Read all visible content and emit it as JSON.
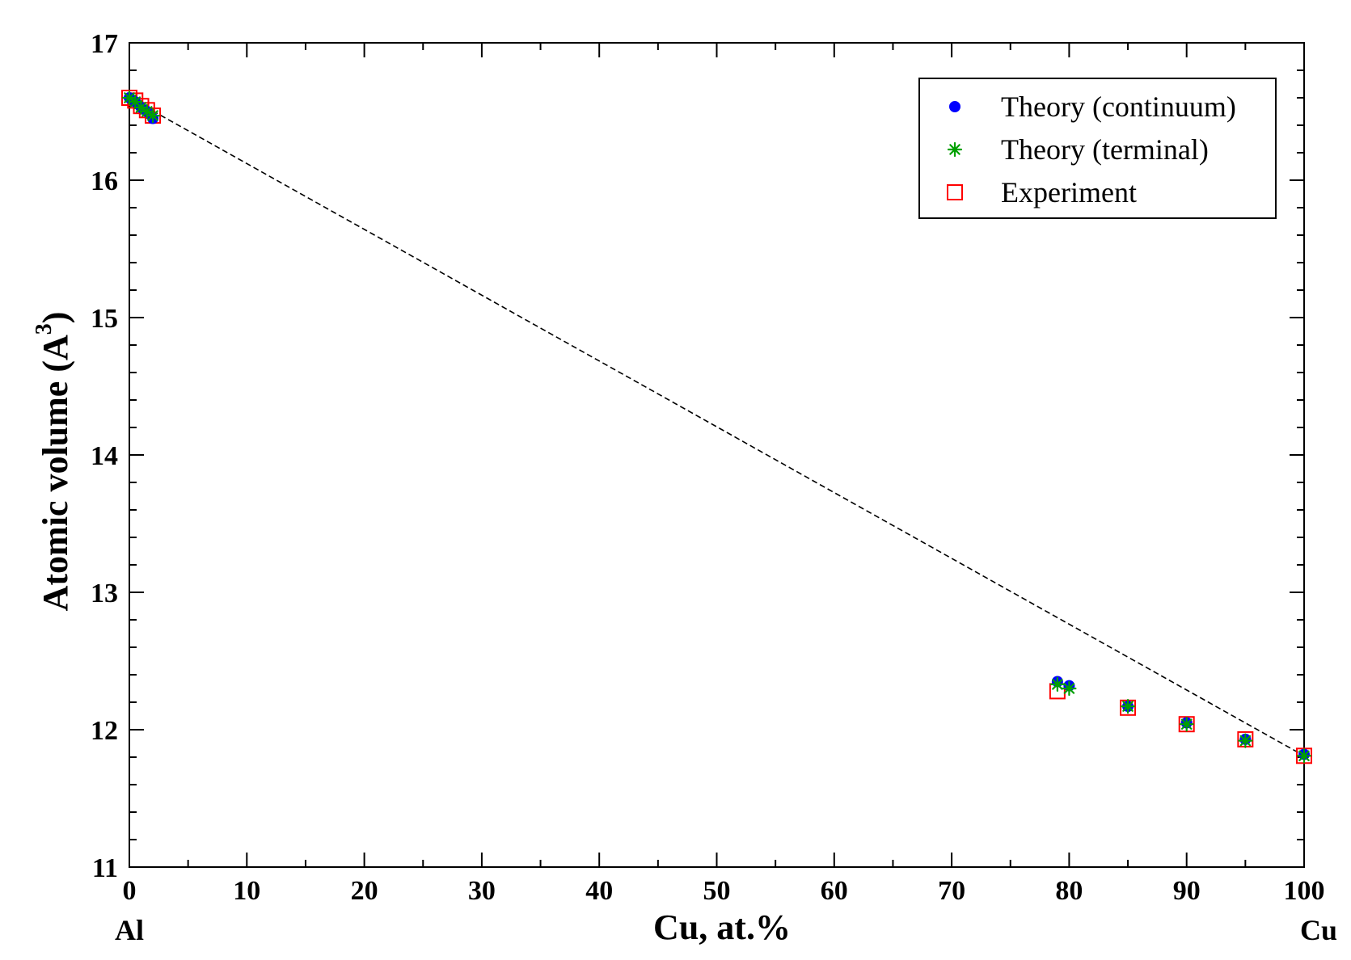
{
  "chart_data": {
    "type": "scatter",
    "xlabel": "Cu, at.%",
    "ylabel": "Atomic volume (A",
    "ylabel_superscript": "3",
    "ylabel_close": ")",
    "x_end_labels": {
      "left": "Al",
      "right": "Cu"
    },
    "xlim": [
      0,
      100
    ],
    "ylim": [
      11,
      17
    ],
    "x_ticks": [
      0,
      10,
      20,
      30,
      40,
      50,
      60,
      70,
      80,
      90,
      100
    ],
    "y_ticks": [
      11,
      12,
      13,
      14,
      15,
      16,
      17
    ],
    "grid": false,
    "legend_position": "top-right",
    "reference_line": {
      "style": "dashed",
      "color": "#000000",
      "x": [
        0,
        100
      ],
      "y": [
        16.6,
        11.81
      ]
    },
    "series": [
      {
        "name": "Theory (continuum)",
        "marker": "filled-circle",
        "color": "#0000ff",
        "x": [
          0,
          0.5,
          1.0,
          1.5,
          2.0,
          79,
          80,
          85,
          90,
          95,
          100
        ],
        "y": [
          16.6,
          16.57,
          16.53,
          16.5,
          16.45,
          12.35,
          12.32,
          12.17,
          12.05,
          11.93,
          11.82
        ]
      },
      {
        "name": "Theory (terminal)",
        "marker": "asterisk",
        "color": "#00a000",
        "x": [
          0,
          0.5,
          1.0,
          1.5,
          2.0,
          79,
          80,
          85,
          90,
          95,
          100
        ],
        "y": [
          16.6,
          16.57,
          16.53,
          16.5,
          16.47,
          12.33,
          12.3,
          12.17,
          12.04,
          11.92,
          11.81
        ]
      },
      {
        "name": "Experiment",
        "marker": "open-square",
        "color": "#ff0000",
        "x": [
          0,
          0.5,
          1.0,
          1.5,
          2.0,
          79,
          85,
          90,
          95,
          100
        ],
        "y": [
          16.6,
          16.58,
          16.54,
          16.51,
          16.47,
          12.28,
          12.16,
          12.04,
          11.93,
          11.81
        ]
      }
    ]
  }
}
